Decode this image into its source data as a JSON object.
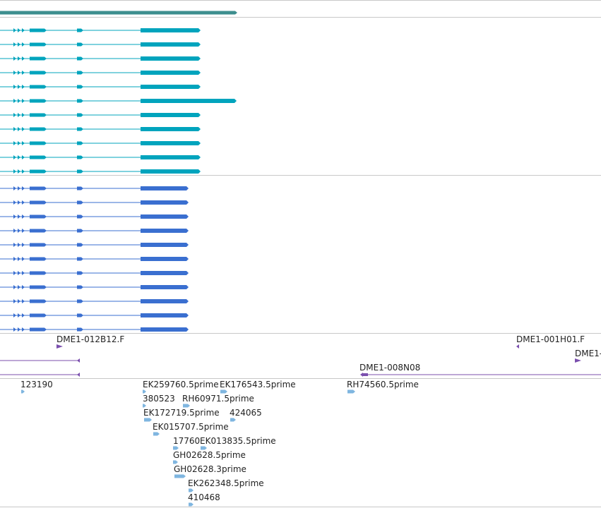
{
  "colors": {
    "top_gene": "#3d8e8e",
    "cyan_transcripts": "#00a4bd",
    "blue_transcripts": "#3a6fd0",
    "clone_ends": "#7b4fae",
    "est": "#7fb6e0",
    "separator": "#c8c8c8"
  },
  "top_gene": {},
  "cyan_transcripts": {
    "count": 11,
    "long_index": 5
  },
  "blue_transcripts": {
    "count": 11
  },
  "clones": [
    {
      "label": "DME1-012B12.F",
      "strand": "+"
    },
    {
      "label": "DME1-001H01.F",
      "strand": "-"
    },
    {
      "label": "DME1-",
      "strand": "+"
    },
    {
      "label": "",
      "strand": "-"
    },
    {
      "label": "DME1-008N08",
      "strand": "-"
    },
    {
      "label": "",
      "strand": "-"
    }
  ],
  "ests": [
    {
      "label": "123190"
    },
    {
      "label": "EK259760.5prime"
    },
    {
      "label": "EK176543.5prime"
    },
    {
      "label": "RH74560.5prime"
    },
    {
      "label": "380523"
    },
    {
      "label": "RH60971.5prime"
    },
    {
      "label": "EK172719.5prime"
    },
    {
      "label": "424065"
    },
    {
      "label": "EK015707.5prime"
    },
    {
      "label": "17760"
    },
    {
      "label": "EK013835.5prime"
    },
    {
      "label": "GH02628.5prime"
    },
    {
      "label": "GH02628.3prime"
    },
    {
      "label": "EK262348.5prime"
    },
    {
      "label": "410468"
    }
  ]
}
